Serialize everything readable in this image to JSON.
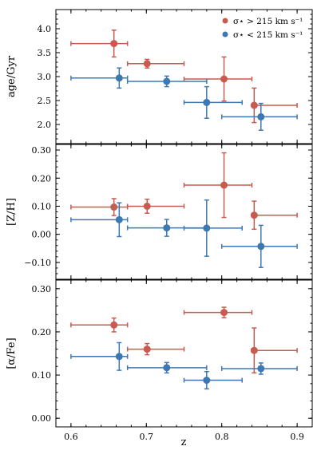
{
  "chart_data": [
    {
      "type": "scatter",
      "ylabel": "age/Gyr",
      "ylim": [
        1.6,
        4.4
      ],
      "yticks": [
        "2.0",
        "2.5",
        "3.0",
        "3.5",
        "4.0"
      ],
      "ytick_values": [
        2.0,
        2.5,
        3.0,
        3.5,
        4.0
      ],
      "legend": {
        "placement": "top-right",
        "entries": [
          {
            "label": "σ⋆ > 215 km s⁻¹",
            "color": "#c85a50"
          },
          {
            "label": "σ⋆ < 215 km s⁻¹",
            "color": "#3e78b2"
          }
        ]
      },
      "series": [
        {
          "name": "σ⋆ > 215 km s⁻¹",
          "color": "#c85a50",
          "points": [
            {
              "x": 0.657,
              "y": 3.69,
              "x_lo": 0.6,
              "x_hi": 0.675,
              "y_err": 0.28
            },
            {
              "x": 0.701,
              "y": 3.27,
              "x_lo": 0.675,
              "x_hi": 0.75,
              "y_err": 0.09
            },
            {
              "x": 0.803,
              "y": 2.95,
              "x_lo": 0.75,
              "x_hi": 0.84,
              "y_err": 0.46
            },
            {
              "x": 0.843,
              "y": 2.4,
              "x_lo": 0.84,
              "x_hi": 0.9,
              "y_err": 0.36
            }
          ]
        },
        {
          "name": "σ⋆ < 215 km s⁻¹",
          "color": "#3e78b2",
          "points": [
            {
              "x": 0.664,
              "y": 2.97,
              "x_lo": 0.6,
              "x_hi": 0.675,
              "y_err": 0.21
            },
            {
              "x": 0.727,
              "y": 2.9,
              "x_lo": 0.675,
              "x_hi": 0.78,
              "y_err": 0.11
            },
            {
              "x": 0.78,
              "y": 2.46,
              "x_lo": 0.75,
              "x_hi": 0.827,
              "y_err": 0.33
            },
            {
              "x": 0.852,
              "y": 2.16,
              "x_lo": 0.8,
              "x_hi": 0.9,
              "y_err": 0.28
            }
          ]
        }
      ]
    },
    {
      "type": "scatter",
      "ylabel": "[Z/H]",
      "ylim": [
        -0.16,
        0.32
      ],
      "yticks": [
        "−0.10",
        "0.00",
        "0.10",
        "0.20",
        "0.30"
      ],
      "ytick_values": [
        -0.1,
        0.0,
        0.1,
        0.2,
        0.3
      ],
      "series": [
        {
          "name": "σ⋆ > 215 km s⁻¹",
          "color": "#c85a50",
          "points": [
            {
              "x": 0.657,
              "y": 0.097,
              "x_lo": 0.6,
              "x_hi": 0.675,
              "y_err": 0.03
            },
            {
              "x": 0.701,
              "y": 0.1,
              "x_lo": 0.675,
              "x_hi": 0.75,
              "y_err": 0.025
            },
            {
              "x": 0.803,
              "y": 0.175,
              "x_lo": 0.75,
              "x_hi": 0.84,
              "y_err": 0.115
            },
            {
              "x": 0.843,
              "y": 0.068,
              "x_lo": 0.84,
              "x_hi": 0.9,
              "y_err": 0.05
            }
          ]
        },
        {
          "name": "σ⋆ < 215 km s⁻¹",
          "color": "#3e78b2",
          "points": [
            {
              "x": 0.664,
              "y": 0.052,
              "x_lo": 0.6,
              "x_hi": 0.675,
              "y_err": 0.06
            },
            {
              "x": 0.727,
              "y": 0.023,
              "x_lo": 0.675,
              "x_hi": 0.78,
              "y_err": 0.03
            },
            {
              "x": 0.78,
              "y": 0.022,
              "x_lo": 0.75,
              "x_hi": 0.827,
              "y_err": 0.1
            },
            {
              "x": 0.852,
              "y": -0.043,
              "x_lo": 0.8,
              "x_hi": 0.9,
              "y_err": 0.075
            }
          ]
        }
      ]
    },
    {
      "type": "scatter",
      "xlabel": "z",
      "ylabel": "[α/Fe]",
      "ylim": [
        -0.02,
        0.32
      ],
      "xlim": [
        0.58,
        0.92
      ],
      "xticks": [
        "0.6",
        "0.7",
        "0.8",
        "0.9"
      ],
      "xtick_values": [
        0.6,
        0.7,
        0.8,
        0.9
      ],
      "yticks": [
        "0.00",
        "0.10",
        "0.20",
        "0.30"
      ],
      "ytick_values": [
        0.0,
        0.1,
        0.2,
        0.3
      ],
      "series": [
        {
          "name": "σ⋆ > 215 km s⁻¹",
          "color": "#c85a50",
          "points": [
            {
              "x": 0.657,
              "y": 0.216,
              "x_lo": 0.6,
              "x_hi": 0.675,
              "y_err": 0.016
            },
            {
              "x": 0.701,
              "y": 0.16,
              "x_lo": 0.675,
              "x_hi": 0.75,
              "y_err": 0.013
            },
            {
              "x": 0.803,
              "y": 0.245,
              "x_lo": 0.75,
              "x_hi": 0.84,
              "y_err": 0.012
            },
            {
              "x": 0.843,
              "y": 0.157,
              "x_lo": 0.84,
              "x_hi": 0.9,
              "y_err": 0.052
            }
          ]
        },
        {
          "name": "σ⋆ < 215 km s⁻¹",
          "color": "#3e78b2",
          "points": [
            {
              "x": 0.664,
              "y": 0.143,
              "x_lo": 0.6,
              "x_hi": 0.675,
              "y_err": 0.032
            },
            {
              "x": 0.727,
              "y": 0.117,
              "x_lo": 0.675,
              "x_hi": 0.78,
              "y_err": 0.012
            },
            {
              "x": 0.78,
              "y": 0.088,
              "x_lo": 0.75,
              "x_hi": 0.827,
              "y_err": 0.02
            },
            {
              "x": 0.852,
              "y": 0.115,
              "x_lo": 0.8,
              "x_hi": 0.9,
              "y_err": 0.013
            }
          ]
        }
      ]
    }
  ]
}
